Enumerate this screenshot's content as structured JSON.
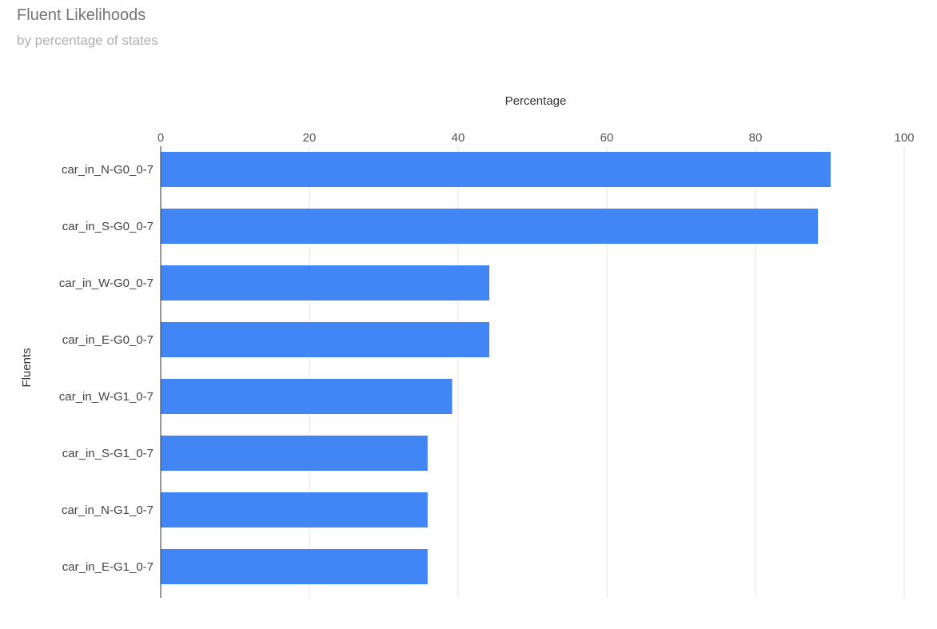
{
  "chart_data": {
    "type": "bar",
    "orientation": "horizontal",
    "title": "Fluent Likelihoods",
    "subtitle": "by percentage of states",
    "xlabel": "Percentage",
    "ylabel": "Fluents",
    "xlim": [
      0,
      100
    ],
    "xticks": [
      "0",
      "20",
      "40",
      "60",
      "80",
      "100"
    ],
    "x_axis_position": "top",
    "grid": true,
    "legend": "none",
    "bar_color": "#4285f4",
    "categories": [
      "car_in_N-G0_0-7",
      "car_in_S-G0_0-7",
      "car_in_W-G0_0-7",
      "car_in_E-G0_0-7",
      "car_in_W-G1_0-7",
      "car_in_S-G1_0-7",
      "car_in_N-G1_0-7",
      "car_in_E-G1_0-7"
    ],
    "values": [
      90.1,
      88.4,
      44.2,
      44.2,
      39.2,
      35.9,
      35.9,
      35.9
    ]
  }
}
